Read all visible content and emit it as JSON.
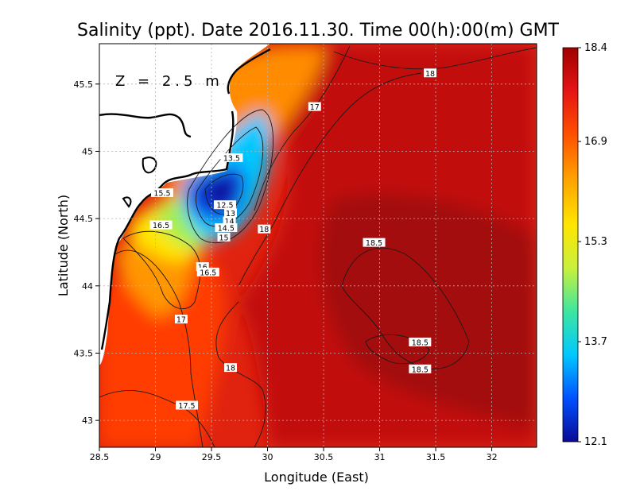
{
  "chart_data": {
    "type": "heatmap",
    "title": "Salinity (ppt). Date 2016.11.30. Time 00(h):00(m) GMT",
    "annotation": "Z = 2.5 m",
    "xlabel": "Longitude (East)",
    "ylabel": "Latitude (North)",
    "xlim": [
      28.5,
      32.4
    ],
    "ylim": [
      42.8,
      45.8
    ],
    "x_ticks": [
      "28.5",
      "29",
      "29.5",
      "30",
      "30.5",
      "31",
      "31.5",
      "32"
    ],
    "y_ticks": [
      "43",
      "43.5",
      "44",
      "44.5",
      "45",
      "45.5"
    ],
    "grid": true,
    "colorbar": {
      "min": 12.1,
      "max": 18.4,
      "tick_labels": [
        "18.4",
        "16.9",
        "15.3",
        "13.7",
        "12.1"
      ],
      "colors": [
        "#0a0a96",
        "#0050ff",
        "#00c8ff",
        "#3ce6a0",
        "#c8f03c",
        "#ffe600",
        "#ffa000",
        "#ff5000",
        "#e61414",
        "#a00000"
      ]
    },
    "contour_labels": [
      {
        "text": "18",
        "lon": 31.45,
        "lat": 45.58
      },
      {
        "text": "17",
        "lon": 30.42,
        "lat": 45.33
      },
      {
        "text": "13.5",
        "lon": 29.68,
        "lat": 44.95
      },
      {
        "text": "15.5",
        "lon": 29.06,
        "lat": 44.69
      },
      {
        "text": "12.5",
        "lon": 29.62,
        "lat": 44.6
      },
      {
        "text": "13",
        "lon": 29.67,
        "lat": 44.54
      },
      {
        "text": "14",
        "lon": 29.66,
        "lat": 44.48
      },
      {
        "text": "16.5",
        "lon": 29.05,
        "lat": 44.45
      },
      {
        "text": "14.5",
        "lon": 29.63,
        "lat": 44.43
      },
      {
        "text": "18",
        "lon": 29.97,
        "lat": 44.42
      },
      {
        "text": "15",
        "lon": 29.61,
        "lat": 44.36
      },
      {
        "text": "18.5",
        "lon": 30.95,
        "lat": 44.32
      },
      {
        "text": "16",
        "lon": 29.42,
        "lat": 44.14
      },
      {
        "text": "16.5",
        "lon": 29.47,
        "lat": 44.1
      },
      {
        "text": "17",
        "lon": 29.23,
        "lat": 43.75
      },
      {
        "text": "18.5",
        "lon": 31.36,
        "lat": 43.58
      },
      {
        "text": "18",
        "lon": 29.67,
        "lat": 43.39
      },
      {
        "text": "18.5",
        "lon": 31.36,
        "lat": 43.38
      },
      {
        "text": "17.5",
        "lon": 29.28,
        "lat": 43.11
      }
    ]
  }
}
